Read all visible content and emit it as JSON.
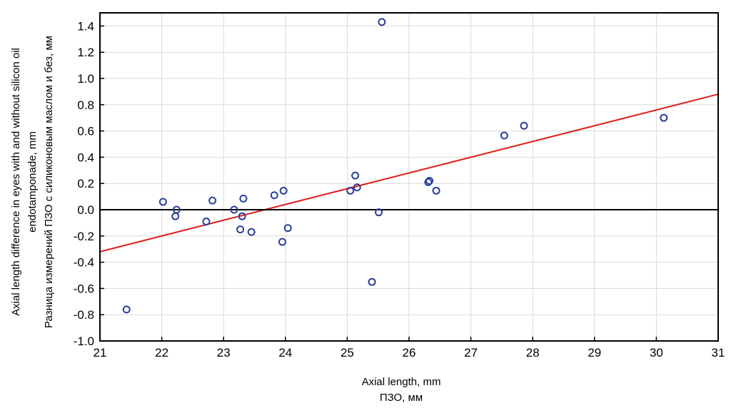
{
  "chart_data": {
    "type": "scatter",
    "title": "",
    "xlabel": [
      "Axial length, mm",
      "ПЗО, мм"
    ],
    "ylabel": [
      "Axial length difference in eyes with and without silicon oil",
      "endotamponade, mm",
      "Разница измерений ПЗО с силиконовым маслом и без, мм"
    ],
    "xlim": [
      21,
      31
    ],
    "ylim": [
      -1.0,
      1.5
    ],
    "xticks": [
      "21",
      "22",
      "23",
      "24",
      "25",
      "26",
      "27",
      "28",
      "29",
      "30",
      "31"
    ],
    "yticks": [
      "-1.0",
      "-0.8",
      "-0.6",
      "-0.4",
      "-0.2",
      "0.0",
      "0.2",
      "0.4",
      "0.6",
      "0.8",
      "1.0",
      "1.2",
      "1.4"
    ],
    "grid": true,
    "zero_line": 0.0,
    "colors": {
      "points": "#2b3f9b",
      "fit": "#e0201b",
      "zero": "#000000",
      "grid": "#d9d9d9"
    },
    "fit_line": {
      "x": [
        21,
        31
      ],
      "y": [
        -0.32,
        0.88
      ]
    },
    "points": [
      {
        "x": 21.43,
        "y": -0.76
      },
      {
        "x": 22.02,
        "y": 0.06
      },
      {
        "x": 22.22,
        "y": -0.05
      },
      {
        "x": 22.24,
        "y": 0.0
      },
      {
        "x": 22.72,
        "y": -0.09
      },
      {
        "x": 22.82,
        "y": 0.07
      },
      {
        "x": 23.17,
        "y": 0.0
      },
      {
        "x": 23.27,
        "y": -0.15
      },
      {
        "x": 23.3,
        "y": -0.05
      },
      {
        "x": 23.32,
        "y": 0.085
      },
      {
        "x": 23.45,
        "y": -0.17
      },
      {
        "x": 23.82,
        "y": 0.11
      },
      {
        "x": 23.95,
        "y": -0.245
      },
      {
        "x": 23.97,
        "y": 0.145
      },
      {
        "x": 24.04,
        "y": -0.14
      },
      {
        "x": 25.05,
        "y": 0.145
      },
      {
        "x": 25.13,
        "y": 0.26
      },
      {
        "x": 25.16,
        "y": 0.17
      },
      {
        "x": 25.4,
        "y": -0.55
      },
      {
        "x": 25.51,
        "y": -0.02
      },
      {
        "x": 25.56,
        "y": 1.43
      },
      {
        "x": 26.31,
        "y": 0.21
      },
      {
        "x": 26.33,
        "y": 0.22
      },
      {
        "x": 26.44,
        "y": 0.145
      },
      {
        "x": 27.54,
        "y": 0.565
      },
      {
        "x": 27.86,
        "y": 0.64
      },
      {
        "x": 30.12,
        "y": 0.7
      }
    ]
  }
}
